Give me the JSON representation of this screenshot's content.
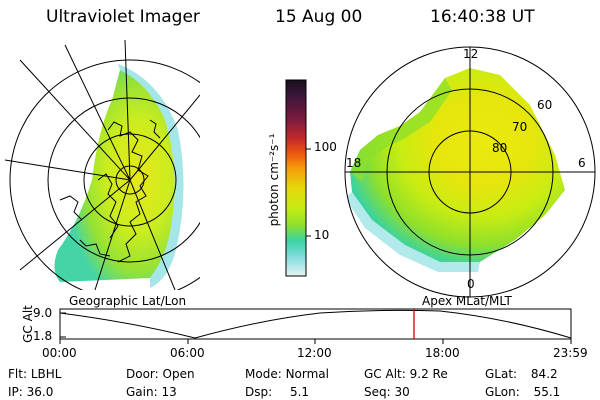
{
  "header": {
    "title": "Ultraviolet Imager",
    "date": "15 Aug 00",
    "time": "16:40:38 UT"
  },
  "map_left": {
    "caption": "Geographic Lat/Lon"
  },
  "map_right": {
    "caption": "Apex MLat/MLT",
    "clock_labels": {
      "top": "12",
      "left": "18",
      "right": "6",
      "bottom": "0"
    },
    "ring_labels": [
      "60",
      "70",
      "80"
    ]
  },
  "colorbar": {
    "unit_label": "photon cm⁻²s⁻¹",
    "scale": "log",
    "tick_labels": [
      "100",
      "10"
    ],
    "colors": [
      "#1a0f1e",
      "#3b163a",
      "#7a1b3e",
      "#c22a2a",
      "#ee5a10",
      "#f59c0a",
      "#e6d80d",
      "#c8ec13",
      "#8fe02b",
      "#3ad2a2",
      "#7fdcdf",
      "#e8f3f3"
    ]
  },
  "gc_alt_plot": {
    "axis_label": "GC Alt",
    "y_ticks": [
      "9.0",
      "1.8"
    ],
    "x_ticks": [
      "00:00",
      "06:00",
      "12:00",
      "18:00",
      "23:59"
    ],
    "current_time_marker": "16:40",
    "marker_color": "#d40000"
  },
  "info": {
    "flt": {
      "label": "Flt:",
      "value": "LBHL"
    },
    "ip": {
      "label": "IP:",
      "value": "36.0"
    },
    "door": {
      "label": "Door:",
      "value": "Open"
    },
    "gain": {
      "label": "Gain:",
      "value": "13"
    },
    "mode": {
      "label": "Mode:",
      "value": "Normal"
    },
    "dsp": {
      "label": "Dsp:",
      "value": "5.1"
    },
    "gcalt": {
      "label": "GC Alt:",
      "value": "9.2 Re"
    },
    "seq": {
      "label": "Seq:",
      "value": "30"
    },
    "glat": {
      "label": "GLat:",
      "value": "84.2"
    },
    "glon": {
      "label": "GLon:",
      "value": "55.1"
    }
  }
}
